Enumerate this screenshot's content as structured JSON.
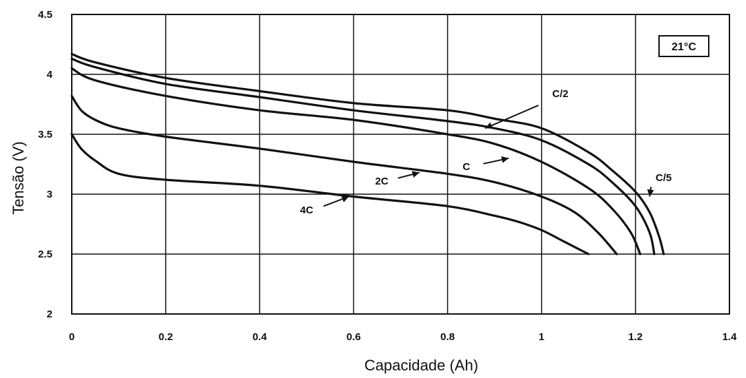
{
  "chart_data": {
    "type": "line",
    "xlabel": "Capacidade (Ah)",
    "ylabel": "Tensão (V)",
    "xlim": [
      0,
      1.4
    ],
    "ylim": [
      2,
      4.5
    ],
    "xticks": [
      "0",
      "0.2",
      "0.4",
      "0.6",
      "0.8",
      "1",
      "1.2",
      "1.4"
    ],
    "yticks": [
      "2",
      "2.5",
      "3",
      "3.5",
      "4",
      "4.5"
    ],
    "grid": true,
    "annotation": "21°C",
    "series": [
      {
        "name": "C/5",
        "x": [
          0,
          0.05,
          0.2,
          0.4,
          0.6,
          0.8,
          0.9,
          1.0,
          1.1,
          1.15,
          1.2,
          1.23,
          1.25,
          1.26
        ],
        "y": [
          4.17,
          4.1,
          3.97,
          3.86,
          3.76,
          3.7,
          3.63,
          3.55,
          3.35,
          3.2,
          3.02,
          2.85,
          2.65,
          2.5
        ]
      },
      {
        "name": "C/2",
        "x": [
          0,
          0.05,
          0.2,
          0.4,
          0.6,
          0.8,
          0.9,
          1.0,
          1.1,
          1.15,
          1.2,
          1.23,
          1.24
        ],
        "y": [
          4.13,
          4.06,
          3.92,
          3.81,
          3.7,
          3.61,
          3.55,
          3.45,
          3.25,
          3.1,
          2.9,
          2.68,
          2.5
        ]
      },
      {
        "name": "C",
        "x": [
          0,
          0.05,
          0.2,
          0.4,
          0.6,
          0.8,
          0.9,
          1.0,
          1.1,
          1.15,
          1.19,
          1.21
        ],
        "y": [
          4.05,
          3.95,
          3.82,
          3.7,
          3.62,
          3.5,
          3.42,
          3.27,
          3.05,
          2.88,
          2.68,
          2.5
        ]
      },
      {
        "name": "2C",
        "x": [
          0,
          0.02,
          0.05,
          0.1,
          0.2,
          0.4,
          0.6,
          0.8,
          0.9,
          1.0,
          1.07,
          1.12,
          1.16
        ],
        "y": [
          3.82,
          3.7,
          3.62,
          3.55,
          3.48,
          3.38,
          3.27,
          3.17,
          3.1,
          2.98,
          2.85,
          2.68,
          2.5
        ]
      },
      {
        "name": "4C",
        "x": [
          0,
          0.02,
          0.05,
          0.1,
          0.2,
          0.4,
          0.6,
          0.8,
          0.9,
          0.95,
          1.0,
          1.05,
          1.1
        ],
        "y": [
          3.5,
          3.38,
          3.28,
          3.17,
          3.12,
          3.07,
          2.98,
          2.9,
          2.82,
          2.77,
          2.7,
          2.6,
          2.5
        ]
      }
    ],
    "label_arrows": [
      {
        "label": "C/2",
        "text_at": [
          1.04,
          3.81
        ],
        "tip_at": [
          0.88,
          3.55
        ]
      },
      {
        "label": "C",
        "text_at": [
          0.84,
          3.2
        ],
        "tip_at": [
          0.93,
          3.3
        ]
      },
      {
        "label": "2C",
        "text_at": [
          0.66,
          3.08
        ],
        "tip_at": [
          0.74,
          3.18
        ]
      },
      {
        "label": "4C",
        "text_at": [
          0.5,
          2.84
        ],
        "tip_at": [
          0.59,
          2.98
        ]
      },
      {
        "label": "C/5",
        "text_at": [
          1.26,
          3.11
        ],
        "tip_at": [
          1.23,
          2.98
        ]
      }
    ]
  }
}
